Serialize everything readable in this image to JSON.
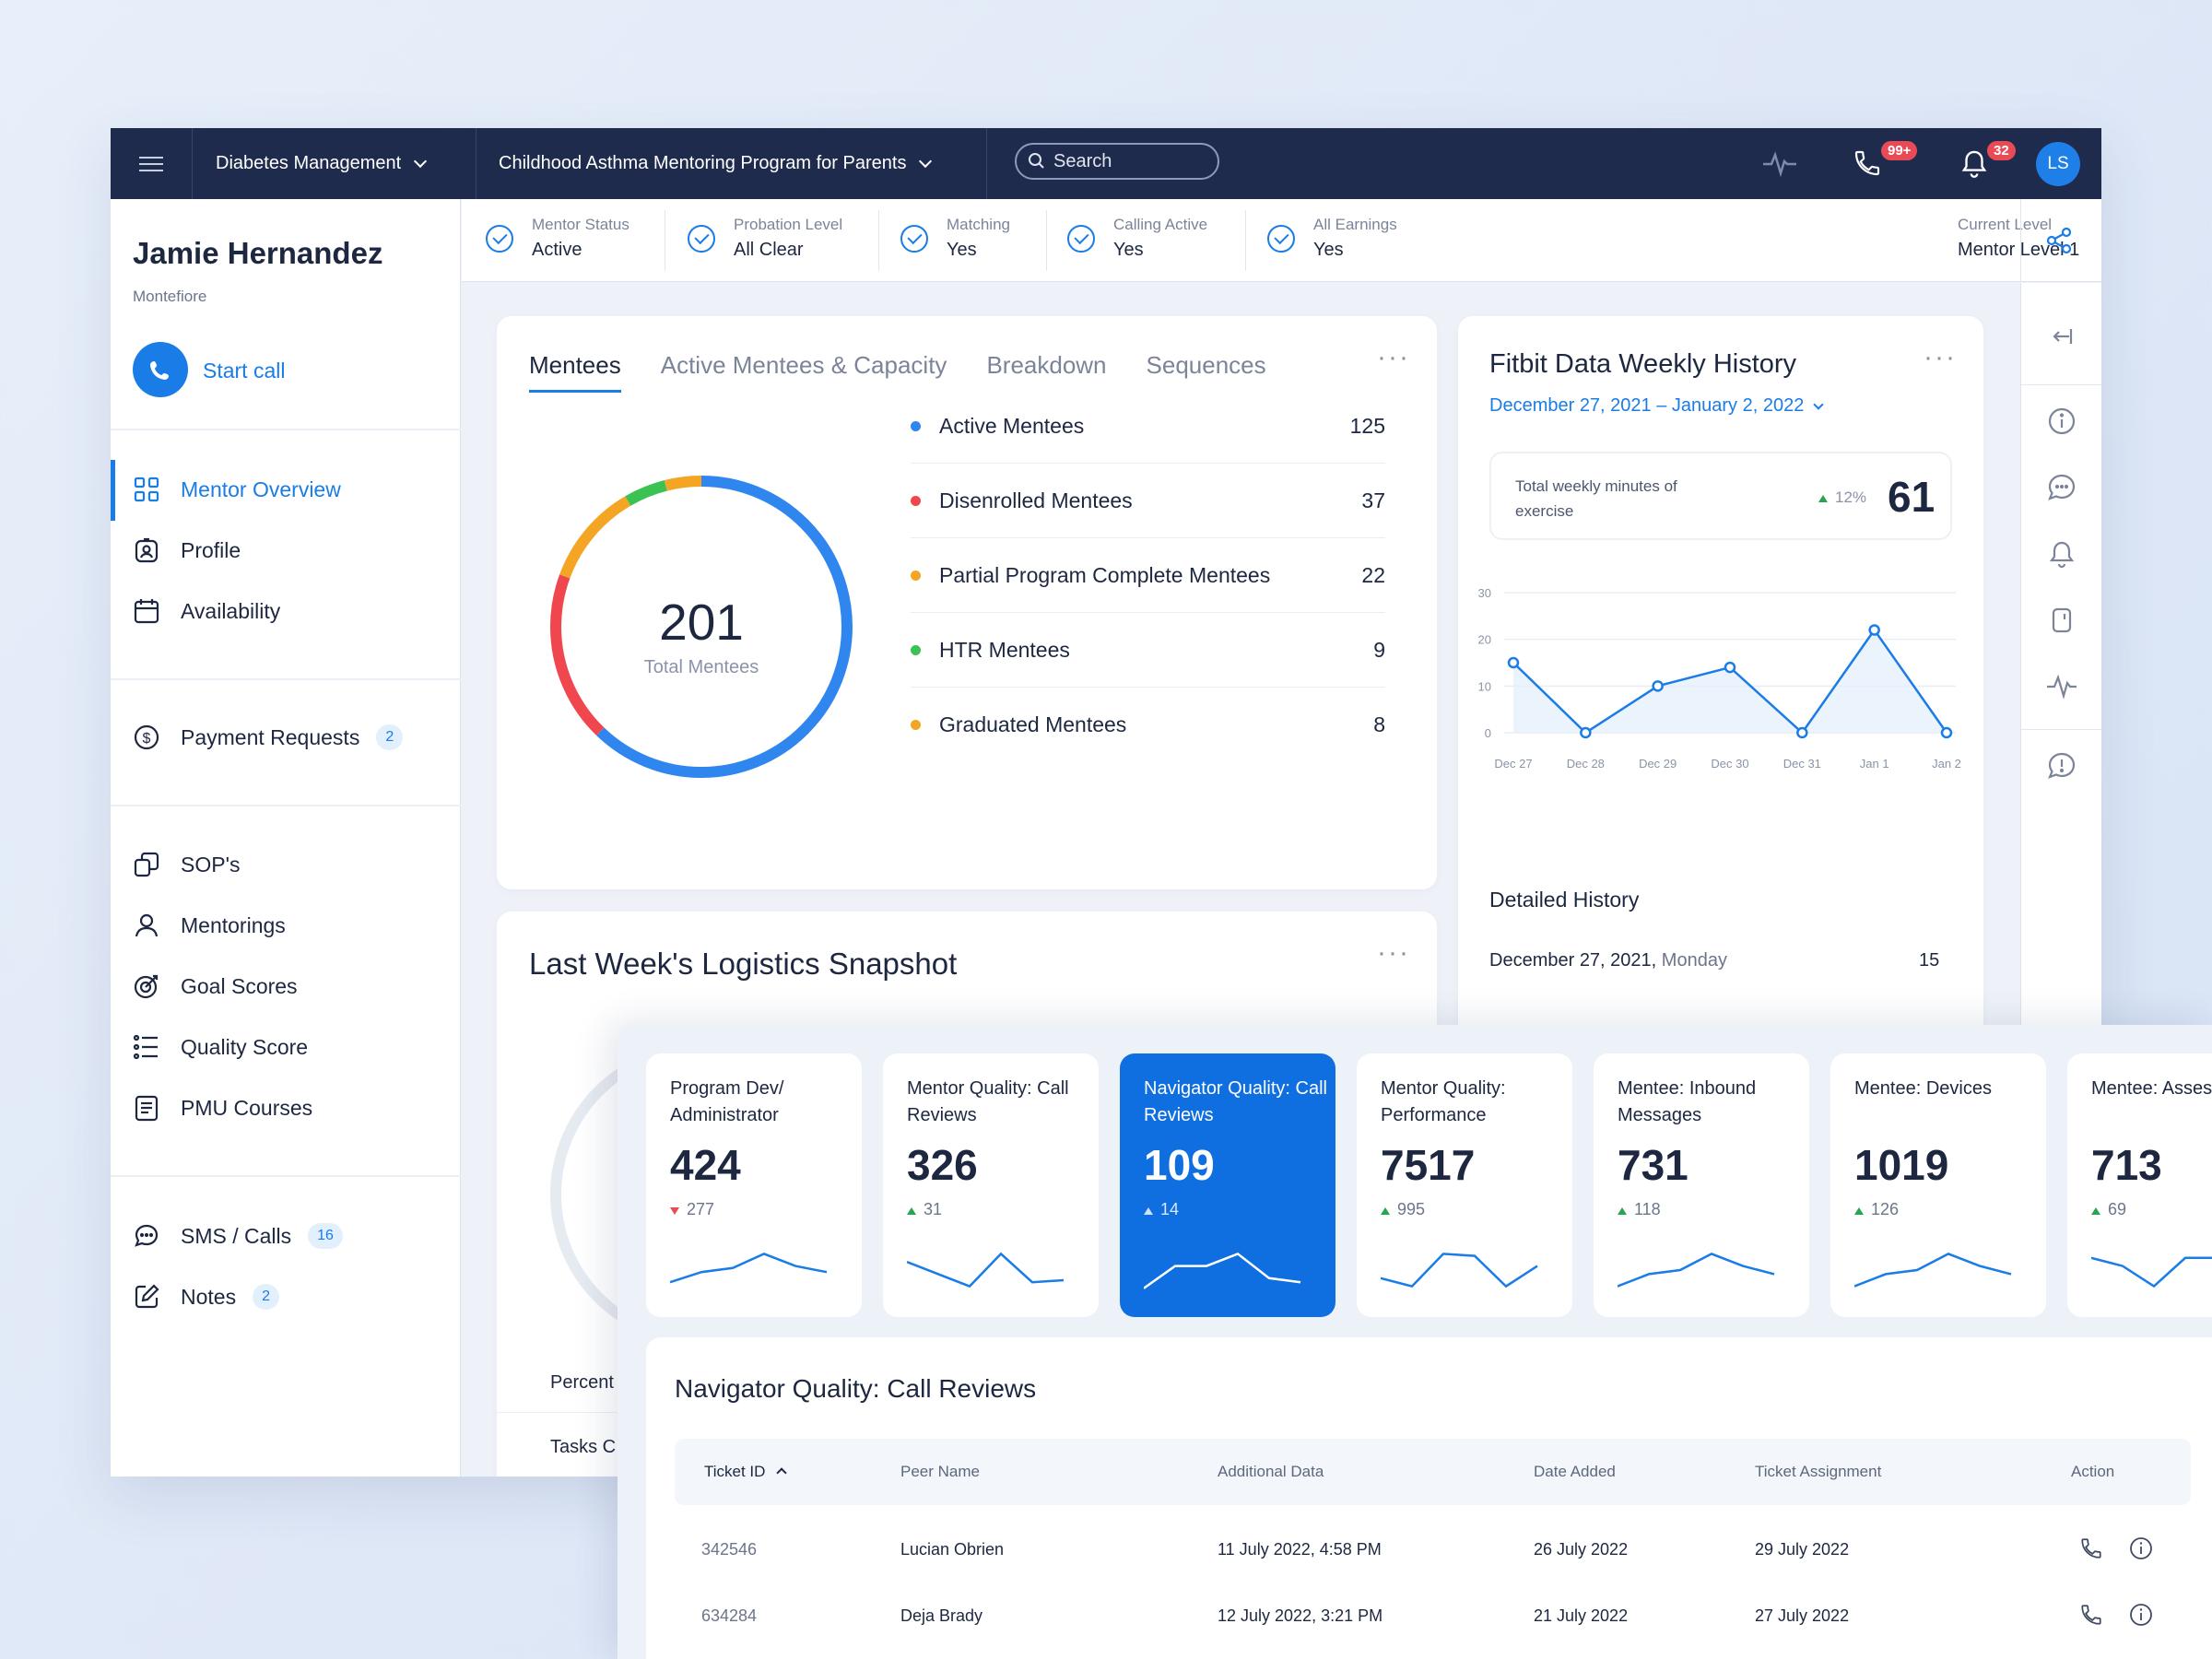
{
  "topbar": {
    "program_area": "Diabetes Management",
    "program": "Childhood Asthma Mentoring Program for Parents",
    "search_placeholder": "Search",
    "calls_badge": "99+",
    "notifications_badge": "32",
    "avatar_initials": "LS"
  },
  "profile": {
    "name": "Jamie Hernandez",
    "org": "Montefiore",
    "start_call": "Start call"
  },
  "sidebar": {
    "items": [
      {
        "label": "Mentor Overview",
        "icon": "grid-icon"
      },
      {
        "label": "Profile",
        "icon": "profile-badge-icon"
      },
      {
        "label": "Availability",
        "icon": "calendar-icon"
      },
      {
        "label": "Payment Requests",
        "icon": "dollar-icon",
        "count": "2"
      },
      {
        "label": "SOP's",
        "icon": "copy-icon"
      },
      {
        "label": "Mentorings",
        "icon": "user-icon"
      },
      {
        "label": "Goal Scores",
        "icon": "target-icon"
      },
      {
        "label": "Quality Score",
        "icon": "list-icon"
      },
      {
        "label": "PMU Courses",
        "icon": "document-icon"
      },
      {
        "label": "SMS / Calls",
        "icon": "chat-icon",
        "count": "16"
      },
      {
        "label": "Notes",
        "icon": "edit-icon",
        "count": "2"
      }
    ]
  },
  "status": [
    {
      "label": "Mentor Status",
      "value": "Active"
    },
    {
      "label": "Probation Level",
      "value": "All Clear"
    },
    {
      "label": "Matching",
      "value": "Yes"
    },
    {
      "label": "Calling Active",
      "value": "Yes"
    },
    {
      "label": "All Earnings",
      "value": "Yes"
    },
    {
      "label": "Current Level",
      "value": "Mentor Level 1"
    }
  ],
  "mentees": {
    "tabs": [
      "Mentees",
      "Active Mentees & Capacity",
      "Breakdown",
      "Sequences"
    ],
    "total": "201",
    "total_label": "Total Mentees",
    "rows": [
      {
        "label": "Active Mentees",
        "value": "125",
        "color": "#2f86ee"
      },
      {
        "label": "Disenrolled Mentees",
        "value": "37",
        "color": "#f0474f"
      },
      {
        "label": "Partial Program Complete Mentees",
        "value": "22",
        "color": "#f5a524"
      },
      {
        "label": "HTR Mentees",
        "value": "9",
        "color": "#3cc153"
      },
      {
        "label": "Graduated Mentees",
        "value": "8",
        "color": "#f5a524"
      }
    ]
  },
  "fitbit": {
    "title": "Fitbit Data Weekly History",
    "range": "December 27, 2021 – January 2, 2022",
    "summary_label": "Total weekly minutes of exercise",
    "summary_change": "12%",
    "summary_value": "61",
    "detailed_title": "Detailed History",
    "detail_date": "December 27, 2021,",
    "detail_day": "Monday",
    "detail_value": "15"
  },
  "chart_data": {
    "type": "line",
    "categories": [
      "Dec 27",
      "Dec 28",
      "Dec 29",
      "Dec 30",
      "Dec 31",
      "Jan 1",
      "Jan 2"
    ],
    "values": [
      15,
      0,
      10,
      14,
      0,
      22,
      0
    ],
    "ylim": [
      0,
      30
    ],
    "yticks": [
      "30",
      "20",
      "10",
      "0"
    ],
    "grid": true
  },
  "logistics": {
    "title": "Last Week's Logistics Snapshot",
    "row1": "Percent",
    "row2": "Tasks C"
  },
  "kpis": [
    {
      "title": "Program Dev/ Administrator",
      "value": "424",
      "delta": "277",
      "dir": "down"
    },
    {
      "title": "Mentor Quality: Call Reviews",
      "value": "326",
      "delta": "31",
      "dir": "up"
    },
    {
      "title": "Navigator Quality: Call Reviews",
      "value": "109",
      "delta": "14",
      "dir": "up"
    },
    {
      "title": "Mentor Quality: Performance",
      "value": "7517",
      "delta": "995",
      "dir": "up"
    },
    {
      "title": "Mentee: Inbound Messages",
      "value": "731",
      "delta": "118",
      "dir": "up"
    },
    {
      "title": "Mentee: Devices",
      "value": "1019",
      "delta": "126",
      "dir": "up"
    },
    {
      "title": "Mentee: Assessments",
      "value": "713",
      "delta": "69",
      "dir": "up"
    }
  ],
  "table": {
    "title": "Navigator Quality: Call Reviews",
    "headers": [
      "Ticket ID",
      "Peer Name",
      "Additional Data",
      "Date Added",
      "Ticket Assignment",
      "Action"
    ],
    "rows": [
      [
        "342546",
        "Lucian Obrien",
        "11 July 2022, 4:58 PM",
        "26 July 2022",
        "29 July 2022"
      ],
      [
        "634284",
        "Deja Brady",
        "12 July 2022, 3:21 PM",
        "21 July 2022",
        "27 July 2022"
      ]
    ]
  }
}
